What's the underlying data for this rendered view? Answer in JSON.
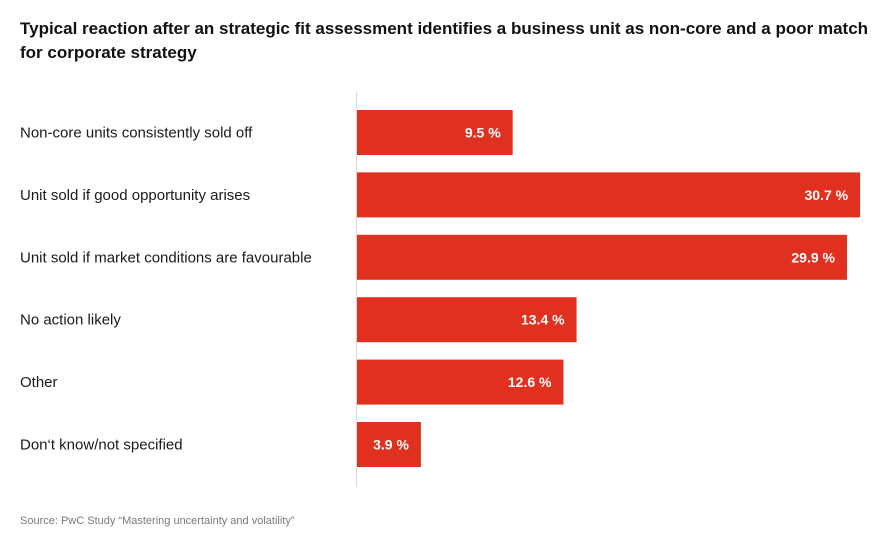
{
  "chart_data": {
    "type": "bar",
    "orientation": "horizontal",
    "title": "Typical reaction after an strategic fit assessment identifies a business unit as non-core and a poor match for corporate strategy",
    "categories": [
      "Non-core units consistently sold off",
      "Unit sold if good opportunity arises",
      "Unit sold if market conditions are favourable",
      "No action likely",
      "Other",
      "Don‘t know/not specified"
    ],
    "values": [
      9.5,
      30.7,
      29.9,
      13.4,
      12.6,
      3.9
    ],
    "value_labels": [
      "9.5 %",
      "30.7 %",
      "29.9 %",
      "13.4 %",
      "12.6 %",
      "3.9 %"
    ],
    "unit": "%",
    "xlim": [
      0,
      31
    ],
    "bar_color": "#e03120",
    "grid": false,
    "source": "Source: PwC Study “Mastering uncertainty and volatility”"
  }
}
